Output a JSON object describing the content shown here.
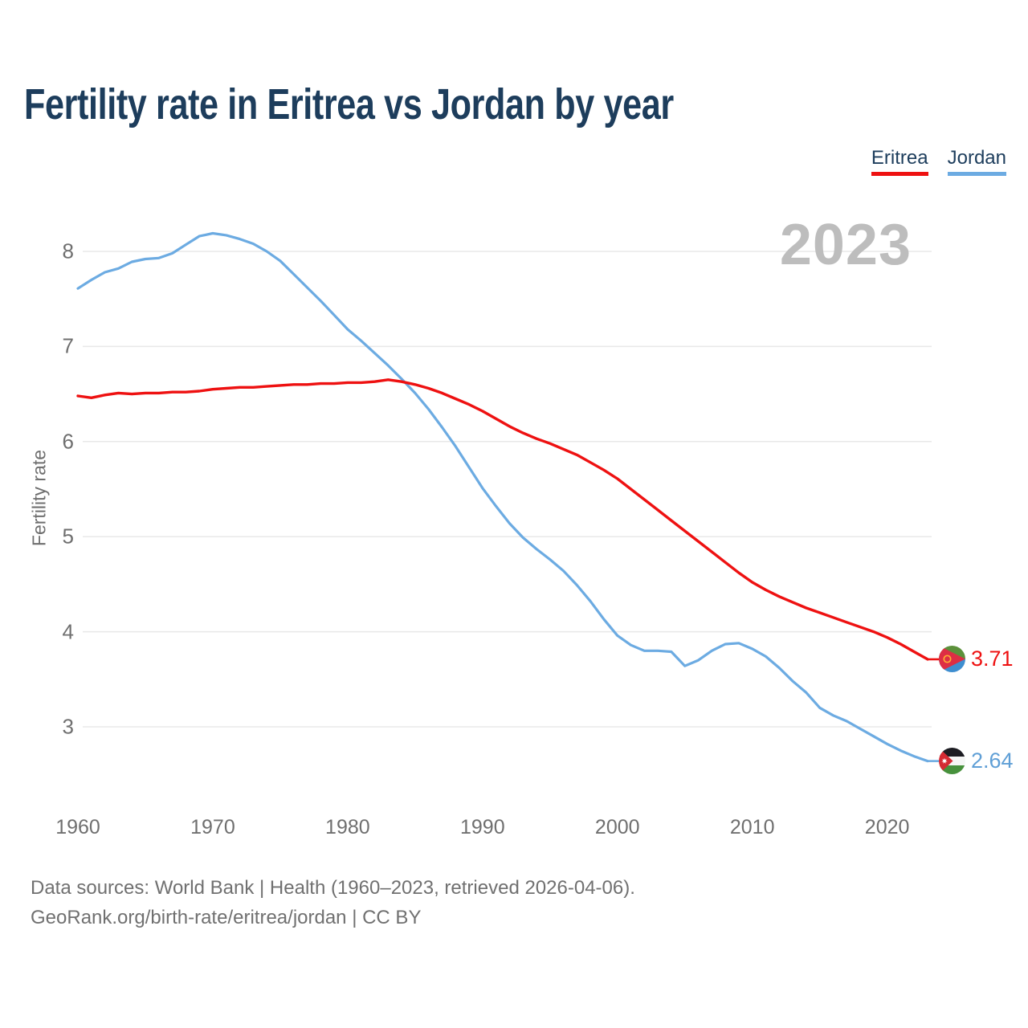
{
  "title": "Fertility rate in Eritrea vs Jordan by year",
  "watermark": "2023",
  "legend": {
    "items": [
      {
        "label": "Eritrea",
        "color": "#ee1111"
      },
      {
        "label": "Jordan",
        "color": "#6cabe2"
      }
    ]
  },
  "y_axis": {
    "label": "Fertility rate",
    "ticks": [
      8,
      7,
      6,
      5,
      4,
      3
    ]
  },
  "x_axis": {
    "ticks": [
      1960,
      1970,
      1980,
      1990,
      2000,
      2010,
      2020
    ]
  },
  "end_labels": [
    {
      "series": "Eritrea",
      "value": "3.71",
      "flag": "eritrea-flag",
      "color": "#ee1111"
    },
    {
      "series": "Jordan",
      "value": "2.64",
      "flag": "jordan-flag",
      "color": "#5f9fd6"
    }
  ],
  "footer": {
    "line1": "Data sources: World Bank | Health (1960–2023, retrieved 2026-04-06).",
    "line2": "GeoRank.org/birth-rate/eritrea/jordan | CC BY"
  },
  "chart_data": {
    "type": "line",
    "title": "Fertility rate in Eritrea vs Jordan by year",
    "xlabel": "",
    "ylabel": "Fertility rate",
    "xlim": [
      1960,
      2023
    ],
    "ylim": [
      2.5,
      8.4
    ],
    "grid": "horizontal",
    "legend_position": "top-right",
    "x": [
      1960,
      1961,
      1962,
      1963,
      1964,
      1965,
      1966,
      1967,
      1968,
      1969,
      1970,
      1971,
      1972,
      1973,
      1974,
      1975,
      1976,
      1977,
      1978,
      1979,
      1980,
      1981,
      1982,
      1983,
      1984,
      1985,
      1986,
      1987,
      1988,
      1989,
      1990,
      1991,
      1992,
      1993,
      1994,
      1995,
      1996,
      1997,
      1998,
      1999,
      2000,
      2001,
      2002,
      2003,
      2004,
      2005,
      2006,
      2007,
      2008,
      2009,
      2010,
      2011,
      2012,
      2013,
      2014,
      2015,
      2016,
      2017,
      2018,
      2019,
      2020,
      2021,
      2022,
      2023
    ],
    "series": [
      {
        "name": "Eritrea",
        "color": "#ee1111",
        "end_value": 3.71,
        "values": [
          6.48,
          6.46,
          6.49,
          6.51,
          6.5,
          6.51,
          6.51,
          6.52,
          6.52,
          6.53,
          6.55,
          6.56,
          6.57,
          6.57,
          6.58,
          6.59,
          6.6,
          6.6,
          6.61,
          6.61,
          6.62,
          6.62,
          6.63,
          6.65,
          6.63,
          6.6,
          6.56,
          6.51,
          6.45,
          6.39,
          6.32,
          6.24,
          6.16,
          6.09,
          6.03,
          5.98,
          5.92,
          5.86,
          5.78,
          5.7,
          5.61,
          5.5,
          5.39,
          5.28,
          5.17,
          5.06,
          4.95,
          4.84,
          4.73,
          4.62,
          4.52,
          4.44,
          4.37,
          4.31,
          4.25,
          4.2,
          4.15,
          4.1,
          4.05,
          4.0,
          3.94,
          3.87,
          3.79,
          3.71
        ]
      },
      {
        "name": "Jordan",
        "color": "#6cabe2",
        "end_value": 2.64,
        "values": [
          7.61,
          7.7,
          7.78,
          7.82,
          7.89,
          7.92,
          7.93,
          7.98,
          8.07,
          8.16,
          8.19,
          8.17,
          8.13,
          8.08,
          8.0,
          7.9,
          7.76,
          7.62,
          7.48,
          7.33,
          7.18,
          7.06,
          6.93,
          6.8,
          6.66,
          6.51,
          6.34,
          6.15,
          5.95,
          5.73,
          5.51,
          5.32,
          5.14,
          4.99,
          4.87,
          4.76,
          4.64,
          4.49,
          4.32,
          4.13,
          3.96,
          3.86,
          3.8,
          3.8,
          3.79,
          3.64,
          3.7,
          3.8,
          3.87,
          3.88,
          3.82,
          3.74,
          3.62,
          3.48,
          3.36,
          3.2,
          3.12,
          3.06,
          2.98,
          2.9,
          2.82,
          2.75,
          2.69,
          2.64
        ]
      }
    ]
  }
}
